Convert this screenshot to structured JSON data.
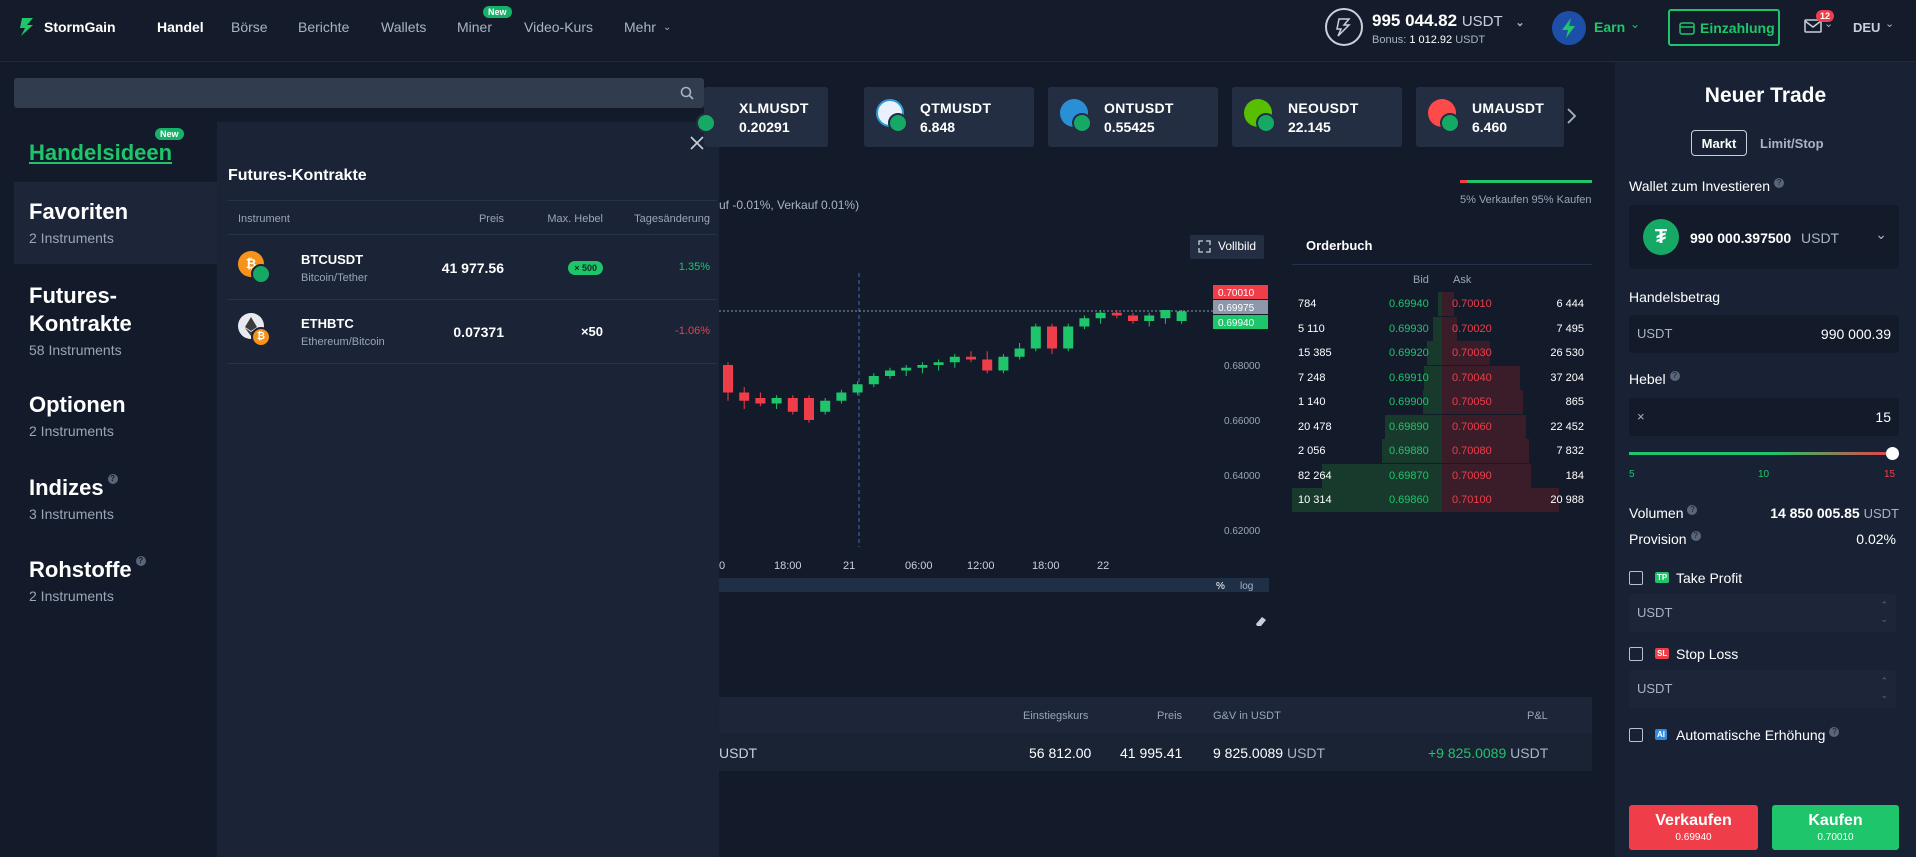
{
  "header": {
    "brand": "StormGain",
    "nav": [
      "Handel",
      "Börse",
      "Berichte",
      "Wallets",
      "Miner",
      "Video-Kurs",
      "Mehr"
    ],
    "miner_badge": "New",
    "balance_value": "995 044.82",
    "balance_unit": "USDT",
    "bonus_label": "Bonus:",
    "bonus_value": "1 012.92",
    "bonus_unit": "USDT",
    "earn_label": "Earn",
    "deposit_label": "Einzahlung",
    "mail_count": "12",
    "language": "DEU"
  },
  "search": {
    "placeholder": ""
  },
  "categories": {
    "trade_ideas": "Handelsideen",
    "trade_ideas_badge": "New",
    "items": [
      {
        "title": "Favoriten",
        "count": "2 Instruments"
      },
      {
        "title": "Futures-Kontrakte",
        "count": "58 Instruments"
      },
      {
        "title": "Optionen",
        "count": "2 Instruments"
      },
      {
        "title": "Indizes",
        "count": "3 Instruments"
      },
      {
        "title": "Rohstoffe",
        "count": "2 Instruments"
      }
    ]
  },
  "popup": {
    "title": "Futures-Kontrakte",
    "columns": {
      "instrument": "Instrument",
      "price": "Preis",
      "leverage": "Max. Hebel",
      "change": "Tagesänderung"
    },
    "rows": [
      {
        "symbol": "BTCUSDT",
        "name": "Bitcoin/Tether",
        "price": "41 977.56",
        "leverage": "× 500",
        "change": "1.35%",
        "change_color": "#1fc56a"
      },
      {
        "symbol": "ETHBTC",
        "name": "Ethereum/Bitcoin",
        "price": "0.07371",
        "leverage": "×50",
        "change": "-1.06%",
        "change_color": "#ef3e4a"
      }
    ]
  },
  "tickers": [
    {
      "symbol": "XLMUSDT",
      "price": "0.20291",
      "icon": "stellar-icon"
    },
    {
      "symbol": "QTMUSDT",
      "price": "6.848",
      "icon": "qtum-icon"
    },
    {
      "symbol": "ONTUSDT",
      "price": "0.55425",
      "icon": "ontology-icon"
    },
    {
      "symbol": "NEOUSDT",
      "price": "22.145",
      "icon": "neo-icon"
    },
    {
      "symbol": "UMAUSDT",
      "price": "6.460",
      "icon": "uma-icon"
    }
  ],
  "sentiment": {
    "text": "5% Verkaufen 95% Kaufen",
    "sell_pct": 5
  },
  "spread_text": "uf -0.01%, Verkauf 0.01%)",
  "chart": {
    "fullscreen_label": "Vollbild",
    "price_labels": [
      "0.70010",
      "0.69975",
      "0.69940"
    ],
    "y_ticks": [
      "0.68000",
      "0.66000",
      "0.64000",
      "0.62000"
    ],
    "x_ticks": [
      "0",
      "18:00",
      "21",
      "06:00",
      "12:00",
      "18:00",
      "22"
    ],
    "percent_label": "%",
    "log_label": "log"
  },
  "chart_data": {
    "type": "candlestick",
    "y_ticks": [
      0.68,
      0.66,
      0.64,
      0.62
    ],
    "candles": [
      {
        "o": 0.68,
        "h": 0.681,
        "l": 0.667,
        "c": 0.67
      },
      {
        "o": 0.67,
        "h": 0.672,
        "l": 0.664,
        "c": 0.667
      },
      {
        "o": 0.668,
        "h": 0.67,
        "l": 0.665,
        "c": 0.666
      },
      {
        "o": 0.666,
        "h": 0.669,
        "l": 0.664,
        "c": 0.668
      },
      {
        "o": 0.668,
        "h": 0.669,
        "l": 0.662,
        "c": 0.663
      },
      {
        "o": 0.668,
        "h": 0.669,
        "l": 0.659,
        "c": 0.66
      },
      {
        "o": 0.663,
        "h": 0.668,
        "l": 0.662,
        "c": 0.667
      },
      {
        "o": 0.667,
        "h": 0.671,
        "l": 0.666,
        "c": 0.67
      },
      {
        "o": 0.67,
        "h": 0.674,
        "l": 0.669,
        "c": 0.673
      },
      {
        "o": 0.673,
        "h": 0.677,
        "l": 0.672,
        "c": 0.676
      },
      {
        "o": 0.676,
        "h": 0.679,
        "l": 0.675,
        "c": 0.678
      },
      {
        "o": 0.678,
        "h": 0.68,
        "l": 0.676,
        "c": 0.679
      },
      {
        "o": 0.679,
        "h": 0.681,
        "l": 0.677,
        "c": 0.68
      },
      {
        "o": 0.68,
        "h": 0.682,
        "l": 0.678,
        "c": 0.681
      },
      {
        "o": 0.681,
        "h": 0.684,
        "l": 0.679,
        "c": 0.683
      },
      {
        "o": 0.683,
        "h": 0.685,
        "l": 0.681,
        "c": 0.682
      },
      {
        "o": 0.682,
        "h": 0.685,
        "l": 0.677,
        "c": 0.678
      },
      {
        "o": 0.678,
        "h": 0.684,
        "l": 0.677,
        "c": 0.683
      },
      {
        "o": 0.683,
        "h": 0.688,
        "l": 0.682,
        "c": 0.686
      },
      {
        "o": 0.686,
        "h": 0.695,
        "l": 0.685,
        "c": 0.694
      },
      {
        "o": 0.694,
        "h": 0.695,
        "l": 0.684,
        "c": 0.686
      },
      {
        "o": 0.686,
        "h": 0.695,
        "l": 0.685,
        "c": 0.694
      },
      {
        "o": 0.694,
        "h": 0.698,
        "l": 0.693,
        "c": 0.697
      },
      {
        "o": 0.697,
        "h": 0.7,
        "l": 0.695,
        "c": 0.699
      },
      {
        "o": 0.699,
        "h": 0.7,
        "l": 0.697,
        "c": 0.698
      },
      {
        "o": 0.698,
        "h": 0.699,
        "l": 0.695,
        "c": 0.696
      },
      {
        "o": 0.696,
        "h": 0.699,
        "l": 0.694,
        "c": 0.698
      },
      {
        "o": 0.697,
        "h": 0.7,
        "l": 0.695,
        "c": 0.7
      },
      {
        "o": 0.696,
        "h": 0.7,
        "l": 0.695,
        "c": 0.6995
      }
    ],
    "last_price": 0.69975
  },
  "orderbook": {
    "title": "Orderbuch",
    "bid_label": "Bid",
    "ask_label": "Ask",
    "rows": [
      {
        "bid_qty": "784",
        "bid": "0.69940",
        "ask": "0.70010",
        "ask_qty": "6 444",
        "bid_depth": 0.03,
        "ask_depth": 0.08
      },
      {
        "bid_qty": "5 110",
        "bid": "0.69930",
        "ask": "0.70020",
        "ask_qty": "7 495",
        "bid_depth": 0.06,
        "ask_depth": 0.1
      },
      {
        "bid_qty": "15 385",
        "bid": "0.69920",
        "ask": "0.70030",
        "ask_qty": "26 530",
        "bid_depth": 0.1,
        "ask_depth": 0.32
      },
      {
        "bid_qty": "7 248",
        "bid": "0.69910",
        "ask": "0.70040",
        "ask_qty": "37 204",
        "bid_depth": 0.12,
        "ask_depth": 0.52
      },
      {
        "bid_qty": "1 140",
        "bid": "0.69900",
        "ask": "0.70050",
        "ask_qty": "865",
        "bid_depth": 0.13,
        "ask_depth": 0.54
      },
      {
        "bid_qty": "20 478",
        "bid": "0.69890",
        "ask": "0.70060",
        "ask_qty": "22 452",
        "bid_depth": 0.38,
        "ask_depth": 0.56
      },
      {
        "bid_qty": "2 056",
        "bid": "0.69880",
        "ask": "0.70080",
        "ask_qty": "7 832",
        "bid_depth": 0.4,
        "ask_depth": 0.58
      },
      {
        "bid_qty": "82 264",
        "bid": "0.69870",
        "ask": "0.70090",
        "ask_qty": "184",
        "bid_depth": 0.8,
        "ask_depth": 0.59
      },
      {
        "bid_qty": "10 314",
        "bid": "0.69860",
        "ask": "0.70100",
        "ask_qty": "20 988",
        "bid_depth": 1.0,
        "ask_depth": 0.78
      }
    ]
  },
  "positions": {
    "columns": {
      "entry": "Einstiegskurs",
      "price": "Preis",
      "gv": "G&V in USDT",
      "pl": "P&L"
    },
    "row": {
      "instrument_fragment": "USDT",
      "entry": "56 812.00",
      "price": "41 995.41",
      "gv": "9 825.0089",
      "gv_unit": "USDT",
      "pl": "+9 825.0089",
      "pl_unit": "USDT"
    }
  },
  "trade": {
    "title": "Neuer Trade",
    "tab_market": "Markt",
    "tab_limit": "Limit/Stop",
    "wallet_label": "Wallet zum Investieren",
    "wallet_value": "990 000.397500",
    "wallet_unit": "USDT",
    "amount_label": "Handelsbetrag",
    "amount_currency": "USDT",
    "amount_value": "990 000.39",
    "leverage_label": "Hebel",
    "leverage_prefix": "×",
    "leverage_value": "15",
    "slider_min": "5",
    "slider_mid": "10",
    "slider_max": "15",
    "slider_fraction": 1.0,
    "volume_label": "Volumen",
    "volume_value": "14 850 005.85",
    "volume_unit": "USDT",
    "commission_label": "Provision",
    "commission_value": "0.02%",
    "take_profit_badge": "TP",
    "take_profit_label": "Take Profit",
    "take_profit_placeholder": "USDT",
    "stop_loss_badge": "SL",
    "stop_loss_label": "Stop Loss",
    "stop_loss_placeholder": "USDT",
    "auto_badge": "AI",
    "auto_label": "Automatische Erhöhung",
    "sell_label": "Verkaufen",
    "sell_price": "0.69940",
    "buy_label": "Kaufen",
    "buy_price": "0.70010"
  },
  "colors": {
    "green": "#1fc56a",
    "red": "#ef3e4a",
    "bg": "#131b2b",
    "panel": "#192234"
  }
}
